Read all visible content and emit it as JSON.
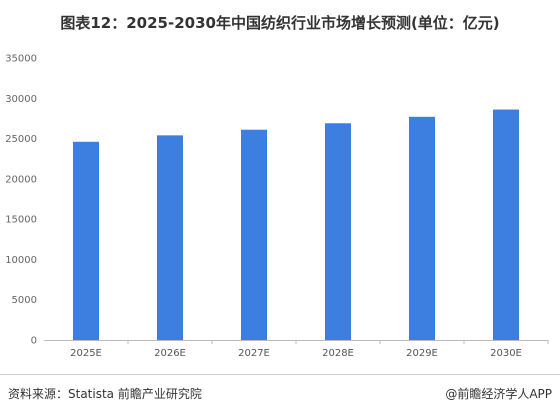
{
  "chart_data": {
    "type": "bar",
    "title": "图表12：2025-2030年中国纺织行业市场增长预测(单位：亿元)",
    "categories": [
      "2025E",
      "2026E",
      "2027E",
      "2028E",
      "2029E",
      "2030E"
    ],
    "series": [
      {
        "values": [
          24600,
          25400,
          26100,
          26900,
          27700,
          28600
        ]
      }
    ],
    "ylim": [
      0,
      35000
    ],
    "yticks": [
      0,
      5000,
      10000,
      15000,
      20000,
      25000,
      30000,
      35000
    ],
    "grid": false,
    "bar_color": "#3d7fe0",
    "axis_color": "#bbbbbb"
  },
  "footer": {
    "source": "资料来源：Statista 前瞻产业研究院",
    "brand": "@前瞻经济学人APP"
  }
}
